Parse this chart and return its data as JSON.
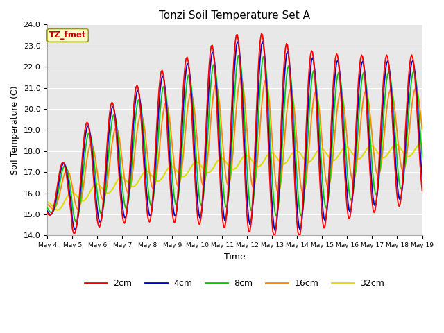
{
  "title": "Tonzi Soil Temperature Set A",
  "xlabel": "Time",
  "ylabel": "Soil Temperature (C)",
  "ylim": [
    14.0,
    24.0
  ],
  "yticks": [
    14.0,
    15.0,
    16.0,
    17.0,
    18.0,
    19.0,
    20.0,
    21.0,
    22.0,
    23.0,
    24.0
  ],
  "colors": {
    "2cm": "#ff0000",
    "4cm": "#0000cc",
    "8cm": "#00cc00",
    "16cm": "#ff8800",
    "32cm": "#dddd00"
  },
  "legend_label": "TZ_fmet",
  "legend_box_color": "#ffffcc",
  "legend_box_edge": "#999900",
  "legend_text_color": "#cc0000",
  "background_color": "#e8e8e8",
  "grid_color": "#ffffff",
  "xtick_days": [
    4,
    5,
    6,
    7,
    8,
    9,
    10,
    11,
    12,
    13,
    14,
    15,
    16,
    17,
    18,
    19
  ]
}
